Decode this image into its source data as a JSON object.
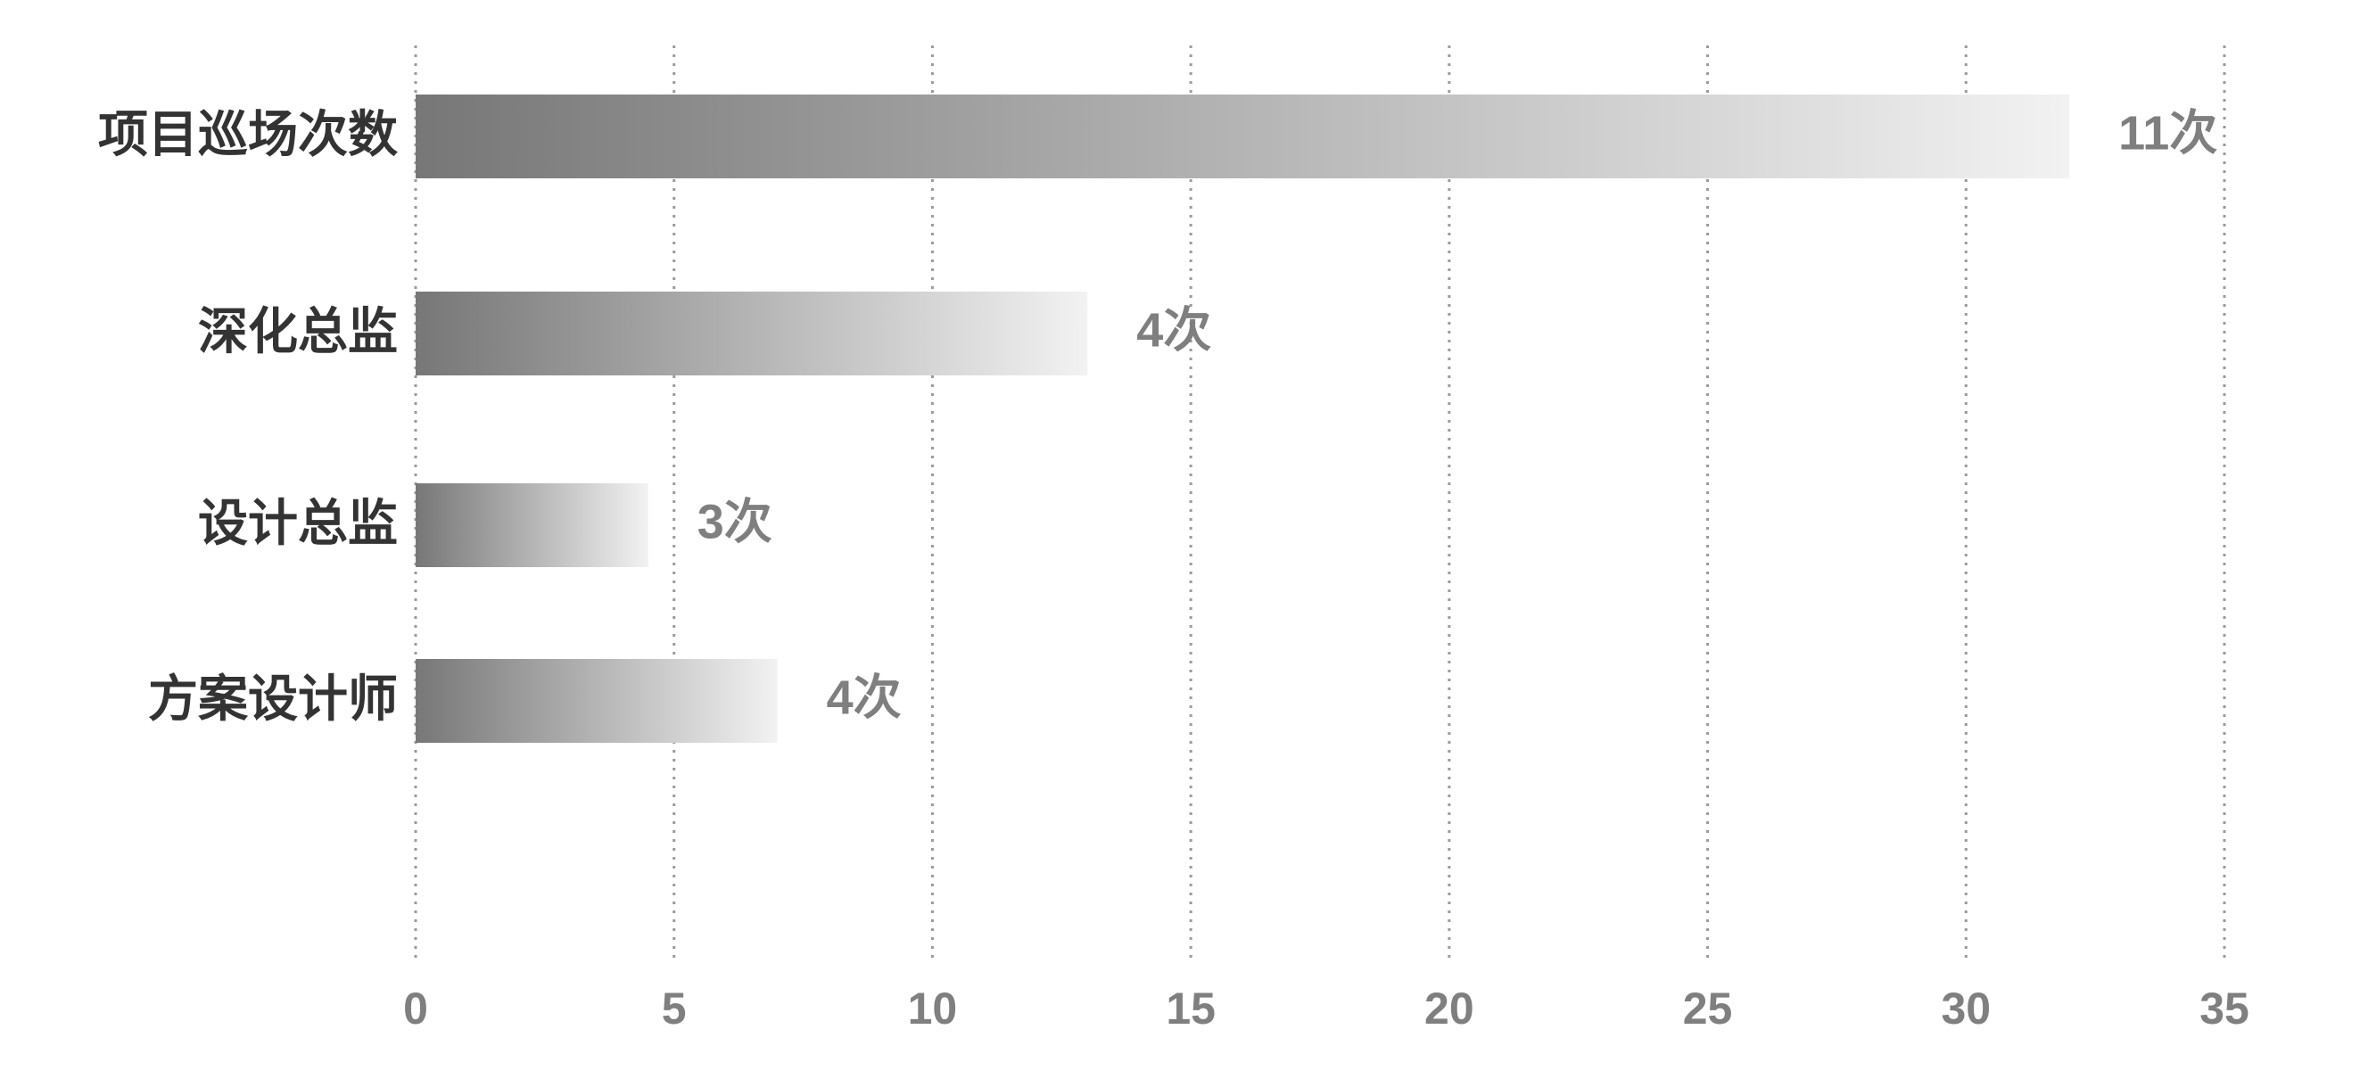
{
  "chart_data": {
    "type": "hbar",
    "categories": [
      "项目巡场次数",
      "深化总监",
      "设计总监",
      "方案设计师"
    ],
    "values": [
      32,
      13,
      4.5,
      7
    ],
    "annotations": [
      "11次",
      "4次",
      "3次",
      "4次"
    ],
    "gradient": [
      "#777777",
      "#f2f2f2"
    ],
    "xlim": [
      0,
      35
    ],
    "xticks": [
      0,
      5,
      10,
      15,
      20,
      25,
      30,
      35
    ],
    "grid": true
  }
}
